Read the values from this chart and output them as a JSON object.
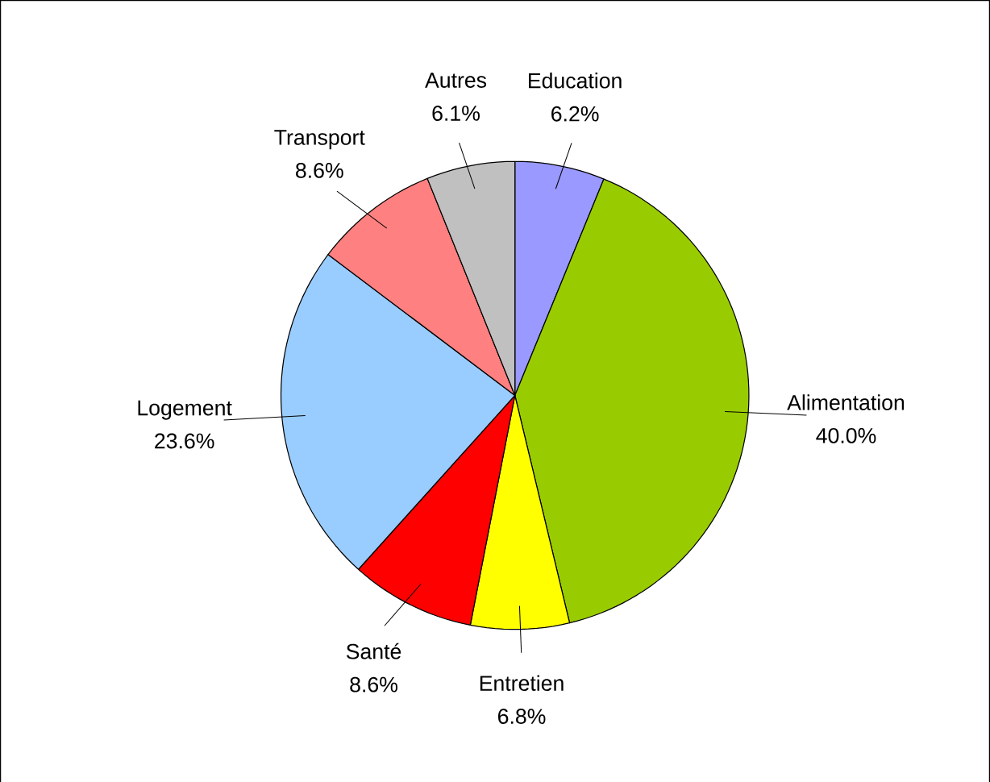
{
  "chart_data": {
    "type": "pie",
    "categories": [
      "Education",
      "Alimentation",
      "Entretien",
      "Santé",
      "Logement",
      "Transport",
      "Autres"
    ],
    "values": [
      6.2,
      40.0,
      6.8,
      8.6,
      23.6,
      8.6,
      6.1
    ],
    "colors": [
      "#9999ff",
      "#99cc00",
      "#ffff00",
      "#ff0000",
      "#99ccff",
      "#ff8080",
      "#c0c0c0"
    ],
    "value_labels": [
      "6.2%",
      "40.0%",
      "6.8%",
      "8.6%",
      "23.6%",
      "8.6%",
      "6.1%"
    ]
  }
}
